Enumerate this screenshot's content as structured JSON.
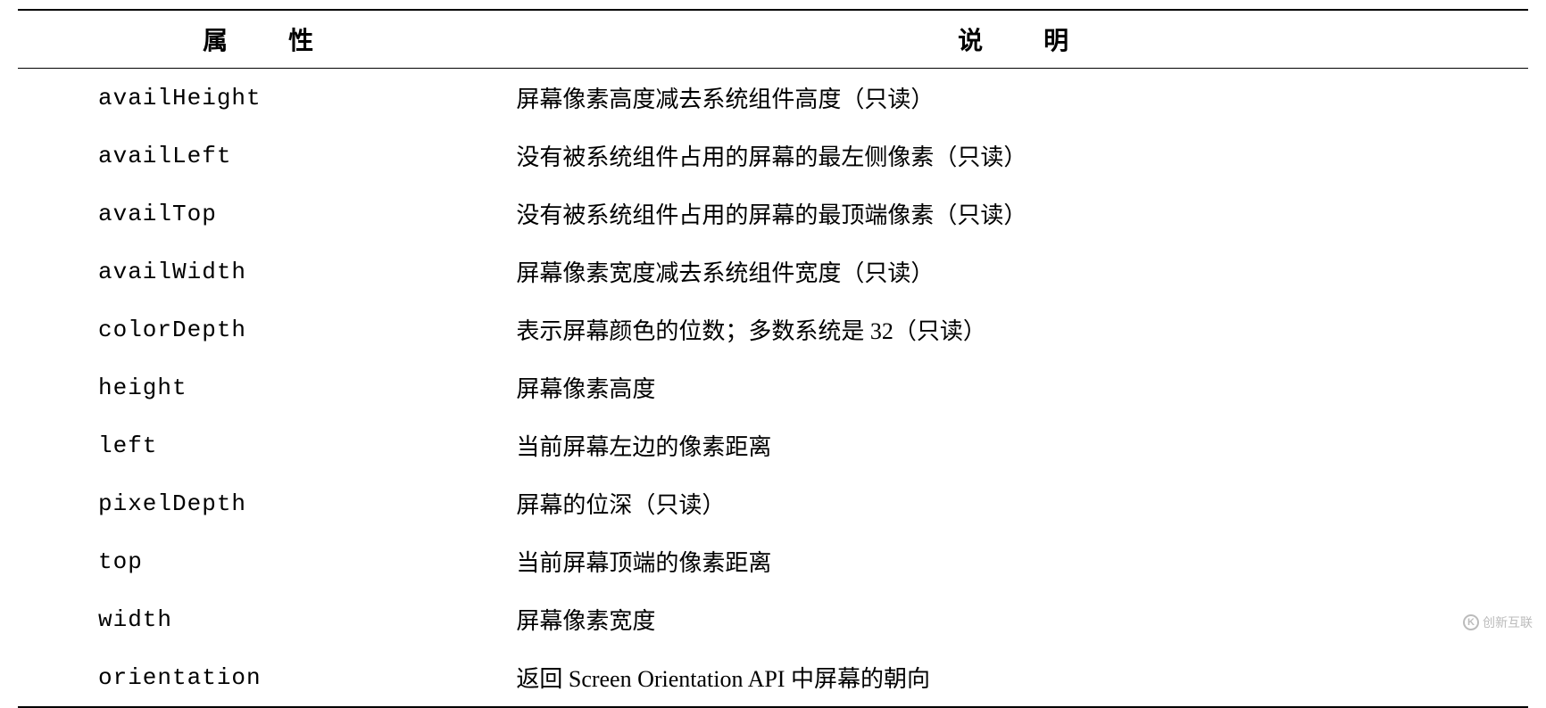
{
  "table": {
    "columns": [
      {
        "label": "属　性",
        "key": "property"
      },
      {
        "label": "说　明",
        "key": "description"
      }
    ],
    "rows": [
      {
        "property": "availHeight",
        "description": "屏幕像素高度减去系统组件高度（只读）"
      },
      {
        "property": "availLeft",
        "description": "没有被系统组件占用的屏幕的最左侧像素（只读）"
      },
      {
        "property": "availTop",
        "description": "没有被系统组件占用的屏幕的最顶端像素（只读）"
      },
      {
        "property": "availWidth",
        "description": "屏幕像素宽度减去系统组件宽度（只读）"
      },
      {
        "property": "colorDepth",
        "description": "表示屏幕颜色的位数；多数系统是 32（只读）"
      },
      {
        "property": "height",
        "description": "屏幕像素高度"
      },
      {
        "property": "left",
        "description": "当前屏幕左边的像素距离"
      },
      {
        "property": "pixelDepth",
        "description": "屏幕的位深（只读）"
      },
      {
        "property": "top",
        "description": "当前屏幕顶端的像素距离"
      },
      {
        "property": "width",
        "description": "屏幕像素宽度"
      },
      {
        "property": "orientation",
        "description": "返回 Screen Orientation API 中屏幕的朝向"
      }
    ],
    "styling": {
      "header_fontsize": 28,
      "body_fontsize": 26,
      "border_color": "#000000",
      "border_top_width": 2,
      "border_header_width": 1.5,
      "border_bottom_width": 2,
      "background_color": "#ffffff",
      "property_font": "Courier New",
      "description_font": "SimSun",
      "row_padding": 14,
      "property_indent": 90
    }
  },
  "watermark": {
    "text": "创新互联",
    "icon_letter": "K",
    "color": "#bbbbbb"
  }
}
